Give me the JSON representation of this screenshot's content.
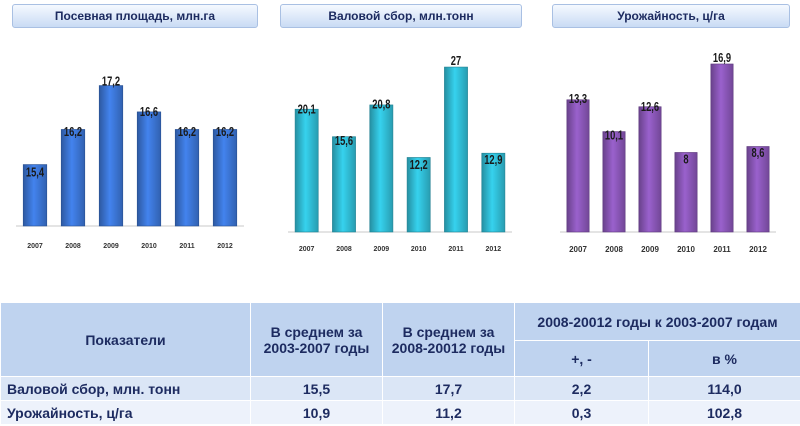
{
  "chart_data": [
    {
      "type": "bar",
      "title": "Посевная площадь, млн.га",
      "categories": [
        "2007",
        "2008",
        "2009",
        "2010",
        "2011",
        "2012"
      ],
      "values": [
        15.4,
        16.2,
        17.2,
        16.6,
        16.2,
        16.2
      ],
      "labels": [
        "15,4",
        "16,2",
        "17,2",
        "16,6",
        "16,2",
        "16,2"
      ],
      "ylim": [
        14.0,
        17.6
      ],
      "color": "#3a72cf"
    },
    {
      "type": "bar",
      "title": "Валовой сбор, млн.тонн",
      "categories": [
        "2007",
        "2008",
        "2009",
        "2010",
        "2011",
        "2012"
      ],
      "values": [
        20.1,
        15.6,
        20.8,
        12.2,
        27,
        12.9
      ],
      "labels": [
        "20,1",
        "15,6",
        "20,8",
        "12,2",
        "27",
        "12,9"
      ],
      "ylim": [
        0,
        27.5
      ],
      "color": "#2fb7cf"
    },
    {
      "type": "bar",
      "title": "Урожайность, ц/га",
      "categories": [
        "2007",
        "2008",
        "2009",
        "2010",
        "2011",
        "2012"
      ],
      "values": [
        13.3,
        10.1,
        12.6,
        8,
        16.9,
        8.6
      ],
      "labels": [
        "13,3",
        "10,1",
        "12,6",
        "8",
        "16,9",
        "8,6"
      ],
      "ylim": [
        0,
        17.3
      ],
      "color": "#8654b2"
    }
  ],
  "table": {
    "col_indicator": "Показатели",
    "col_avg1": "В среднем за 2003-2007 годы",
    "col_avg2": "В среднем за 2008-20012 годы",
    "col_compare": "2008-20012 годы к 2003-2007 годам",
    "sub_diff": "+, -",
    "sub_pct": "в %",
    "rows": [
      {
        "name": "Валовой сбор, млн. тонн",
        "avg1": "15,5",
        "avg2": "17,7",
        "diff": "2,2",
        "pct": "114,0"
      },
      {
        "name": "Урожайность, ц/га",
        "avg1": "10,9",
        "avg2": "11,2",
        "diff": "0,3",
        "pct": "102,8"
      }
    ]
  }
}
